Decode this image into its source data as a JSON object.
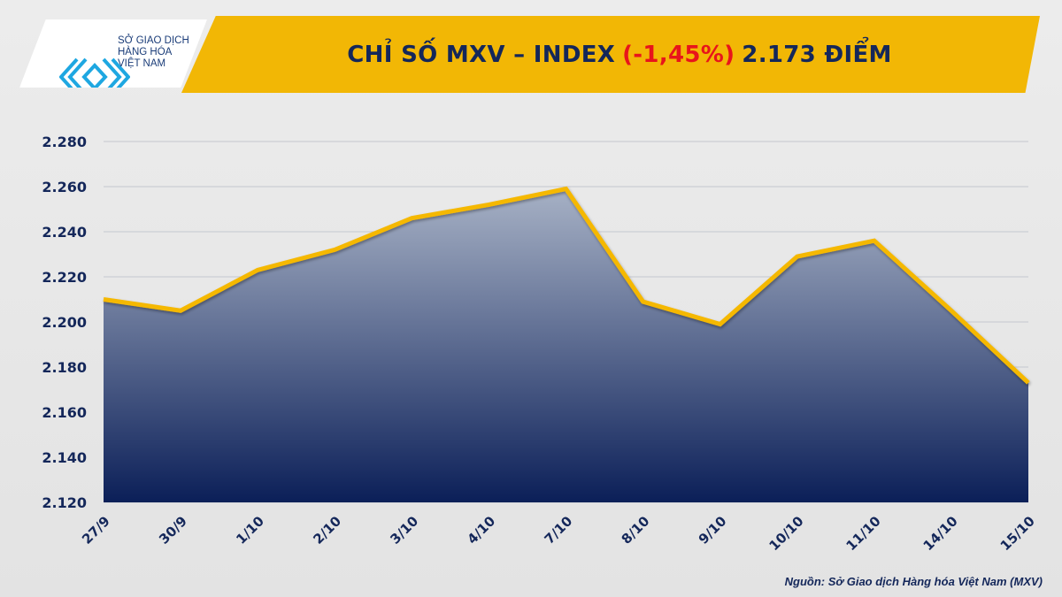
{
  "header": {
    "title_prefix": "CHỈ SỐ MXV – INDEX",
    "title_change": "(-1,45%)",
    "title_suffix": "2.173 ĐIỂM",
    "logo_line1": "SỞ GIAO DỊCH",
    "logo_line2": "HÀNG HÓA",
    "logo_line3": "VIỆT NAM"
  },
  "source": "Nguồn: Sở Giao dịch Hàng hóa Việt Nam (MXV)",
  "colors": {
    "line": "#f5b800",
    "fill_top": "#a3aec3",
    "fill_bottom": "#0b1f58",
    "text": "#14275a",
    "negative": "#e8141b",
    "banner": "#f2b705"
  },
  "chart_data": {
    "type": "area",
    "title": "CHỈ SỐ MXV – INDEX (-1,45%) 2.173 ĐIỂM",
    "categories": [
      "27/9",
      "30/9",
      "1/10",
      "2/10",
      "3/10",
      "4/10",
      "7/10",
      "8/10",
      "9/10",
      "10/10",
      "11/10",
      "14/10",
      "15/10"
    ],
    "values": [
      2210,
      2205,
      2223,
      2232,
      2246,
      2252,
      2259,
      2209,
      2199,
      2229,
      2236,
      2205,
      2173
    ],
    "ylim": [
      2120,
      2280
    ],
    "yticks": [
      2120,
      2140,
      2160,
      2180,
      2200,
      2220,
      2240,
      2260,
      2280
    ],
    "ytick_labels": [
      "2.120",
      "2.140",
      "2.160",
      "2.180",
      "2.200",
      "2.220",
      "2.240",
      "2.260",
      "2.280"
    ],
    "grid": true,
    "legend": "none"
  }
}
